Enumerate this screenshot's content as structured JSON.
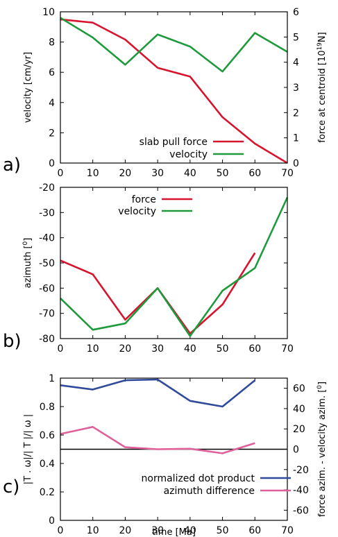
{
  "chart_data": [
    {
      "panel_label": "a)",
      "type": "line",
      "ylabel": "velocity [cm/yr]",
      "y2label": "force at centroid [10^19 N]",
      "y2label_parts": {
        "before": "force at centroid [10",
        "sup": "19",
        "after": "N]"
      },
      "xlim": [
        0,
        70
      ],
      "ylim": [
        0,
        10
      ],
      "y2lim": [
        0,
        6
      ],
      "x_ticks": [
        "0",
        "10",
        "20",
        "30",
        "40",
        "50",
        "60",
        "70"
      ],
      "y_ticks": [
        "0",
        "2",
        "4",
        "6",
        "8",
        "10"
      ],
      "y2_ticks": [
        "0",
        "1",
        "2",
        "3",
        "4",
        "5",
        "6"
      ],
      "legend_position": "bottom-center",
      "series": [
        {
          "name": "slab pull force",
          "axis": "y2",
          "color": "#d7142d",
          "x": [
            0,
            10,
            20,
            30,
            40,
            50,
            60,
            70
          ],
          "y": [
            5.7,
            5.57,
            4.9,
            3.78,
            3.43,
            1.82,
            0.77,
            0.0
          ]
        },
        {
          "name": "velocity",
          "axis": "y",
          "color": "#1e9a3c",
          "x": [
            0,
            10,
            20,
            30,
            40,
            50,
            60,
            70
          ],
          "y": [
            9.6,
            8.3,
            6.5,
            8.5,
            7.7,
            6.05,
            8.6,
            7.35
          ]
        }
      ]
    },
    {
      "panel_label": "b)",
      "type": "line",
      "ylabel": "azimuth [°]",
      "ylabel_parts": {
        "before": "azimuth [",
        "sup": "0",
        "after": "]"
      },
      "xlim": [
        0,
        70
      ],
      "ylim": [
        -80,
        -20
      ],
      "x_ticks": [
        "0",
        "10",
        "20",
        "30",
        "40",
        "50",
        "60",
        "70"
      ],
      "y_ticks": [
        "-80",
        "-70",
        "-60",
        "-50",
        "-40",
        "-30",
        "-20"
      ],
      "legend_position": "top-left",
      "series": [
        {
          "name": "force",
          "axis": "y",
          "color": "#d7142d",
          "x": [
            0,
            10,
            20,
            30,
            40,
            50,
            60
          ],
          "y": [
            -49,
            -54.5,
            -72.5,
            -60,
            -78,
            -66.5,
            -46
          ]
        },
        {
          "name": "velocity",
          "axis": "y",
          "color": "#1e9a3c",
          "x": [
            0,
            10,
            20,
            30,
            40,
            50,
            60,
            70
          ],
          "y": [
            -64,
            -76.5,
            -74,
            -60,
            -79,
            -61,
            -52,
            -24
          ]
        }
      ]
    },
    {
      "panel_label": "c)",
      "type": "line",
      "xlabel": "time [Ma]",
      "ylabel": "|T . ω|/| T |/| ω |",
      "y2label": "force azim. - velocity azim. [°]",
      "y2label_parts": {
        "before": "force azim. - velocity azim. [",
        "sup": "0",
        "after": "]"
      },
      "xlim": [
        0,
        70
      ],
      "ylim": [
        0,
        1
      ],
      "y2lim": [
        -70,
        70
      ],
      "x_ticks": [
        "0",
        "10",
        "20",
        "30",
        "40",
        "50",
        "60",
        "70"
      ],
      "y_ticks": [
        "0",
        "0.2",
        "0.4",
        "0.6",
        "0.8",
        "1"
      ],
      "y2_ticks": [
        "-60",
        "-40",
        "-20",
        "0",
        "20",
        "40",
        "60"
      ],
      "reference_line": {
        "axis": "y2",
        "value": 0
      },
      "legend_position": "bottom-right",
      "series": [
        {
          "name": "normalized dot product",
          "axis": "y",
          "color": "#2f4a9a",
          "x": [
            0,
            10,
            20,
            30,
            40,
            50,
            60
          ],
          "y": [
            0.95,
            0.92,
            0.985,
            0.99,
            0.84,
            0.8,
            0.985
          ]
        },
        {
          "name": "azimuth difference",
          "axis": "y2",
          "color": "#e0609a",
          "x": [
            0,
            10,
            20,
            30,
            40,
            50,
            60
          ],
          "y": [
            15,
            22,
            2,
            0,
            0.5,
            -4,
            6
          ]
        }
      ]
    }
  ]
}
